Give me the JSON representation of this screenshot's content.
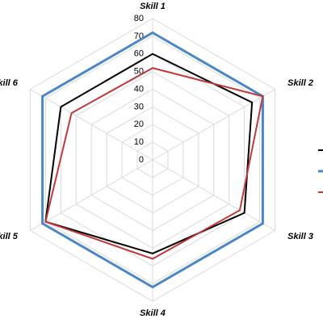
{
  "chart_data": {
    "type": "radar",
    "categories": [
      "Skill 1",
      "Skill 2",
      "Skill 3",
      "Skill 4",
      "Skill 5",
      "Skill 6"
    ],
    "series": [
      {
        "color": "#000000",
        "values": [
          60,
          65,
          60,
          53,
          70,
          60
        ]
      },
      {
        "color": "#4a86c8",
        "values": [
          72,
          72,
          72,
          72,
          72,
          72
        ]
      },
      {
        "color": "#c0393b",
        "values": [
          52,
          72,
          57,
          56,
          70,
          53
        ]
      }
    ],
    "rlim": [
      0,
      80
    ],
    "rticks": [
      0,
      10,
      20,
      30,
      40,
      50,
      60,
      70,
      80
    ],
    "grid": true
  }
}
